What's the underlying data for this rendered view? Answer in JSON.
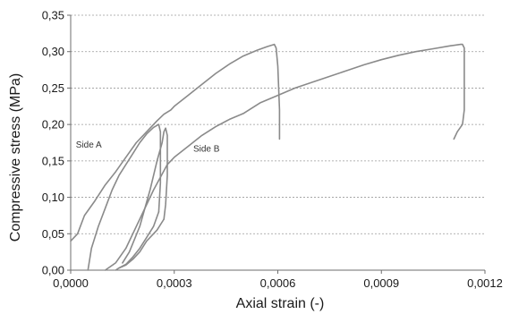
{
  "chart_data": {
    "type": "line",
    "title": "",
    "xlabel": "Axial strain (-)",
    "ylabel": "Compressive stress (MPa)",
    "xlim": [
      0,
      0.0012
    ],
    "ylim": [
      0,
      0.35
    ],
    "x_ticks": [
      0,
      0.0003,
      0.0006,
      0.0009,
      0.0012
    ],
    "x_tick_labels": [
      "0,0000",
      "0,0003",
      "0,0006",
      "0,0009",
      "0,0012"
    ],
    "y_ticks": [
      0,
      0.05,
      0.1,
      0.15,
      0.2,
      0.25,
      0.3,
      0.35
    ],
    "y_tick_labels": [
      "0,00",
      "0,05",
      "0,10",
      "0,15",
      "0,20",
      "0,25",
      "0,30",
      "0,35"
    ],
    "grid": "horizontal dashed",
    "line_color": "#8a8a8a",
    "annotations": [
      {
        "text": "Side A",
        "x": 1.5e-05,
        "y": 0.168
      },
      {
        "text": "Side B",
        "x": 0.000355,
        "y": 0.163
      }
    ],
    "series": [
      {
        "x": [
          0,
          2e-05,
          4e-05,
          7e-05,
          0.0001,
          0.00013,
          0.00016,
          0.00019,
          0.00022,
          0.00025,
          0.00027,
          0.00029,
          0.0003,
          0.00034,
          0.00038,
          0.00042,
          0.00046,
          0.0005,
          0.00054,
          0.00057,
          0.00059,
          0.000595,
          0.0006,
          0.000605,
          0.000605
        ],
        "y": [
          0.04,
          0.05,
          0.075,
          0.095,
          0.117,
          0.135,
          0.155,
          0.175,
          0.19,
          0.205,
          0.214,
          0.22,
          0.225,
          0.24,
          0.255,
          0.27,
          0.283,
          0.294,
          0.302,
          0.307,
          0.31,
          0.305,
          0.28,
          0.22,
          0.18
        ]
      },
      {
        "x": [
          5e-05,
          6e-05,
          8e-05,
          0.0001,
          0.00012,
          0.00014,
          0.00016,
          0.00018,
          0.0002,
          0.00022,
          0.00024,
          0.000255,
          0.00026,
          0.00026,
          0.000255
        ],
        "y": [
          0.0,
          0.03,
          0.06,
          0.085,
          0.11,
          0.13,
          0.145,
          0.16,
          0.175,
          0.187,
          0.196,
          0.2,
          0.19,
          0.12,
          0.08
        ]
      },
      {
        "x": [
          0.000255,
          0.00024,
          0.00022,
          0.0002,
          0.00018,
          0.00016,
          0.00014,
          0.00013
        ],
        "y": [
          0.08,
          0.06,
          0.045,
          0.03,
          0.018,
          0.008,
          0.003,
          0.0
        ]
      },
      {
        "x": [
          0.00015,
          0.00017,
          0.0002,
          0.00023,
          0.00025,
          0.000265,
          0.00027,
          0.000275,
          0.00028,
          0.00028,
          0.000275,
          0.00027
        ],
        "y": [
          0.01,
          0.025,
          0.06,
          0.11,
          0.15,
          0.175,
          0.19,
          0.195,
          0.185,
          0.13,
          0.09,
          0.07
        ]
      },
      {
        "x": [
          0.00027,
          0.00025,
          0.00022,
          0.0002,
          0.00018,
          0.00016,
          0.00014
        ],
        "y": [
          0.07,
          0.055,
          0.04,
          0.025,
          0.015,
          0.007,
          0.003
        ]
      },
      {
        "x": [
          0.0001,
          0.00013,
          0.00016,
          0.0002,
          0.00024,
          0.00028,
          0.0003,
          0.00034,
          0.00038,
          0.00042,
          0.00046,
          0.0005,
          0.00055,
          0.0006,
          0.00065,
          0.0007,
          0.00075,
          0.0008,
          0.00085,
          0.0009,
          0.00095,
          0.001,
          0.00105,
          0.0011,
          0.00113,
          0.001135,
          0.00114,
          0.00114,
          0.001135,
          0.00112,
          0.00111
        ],
        "y": [
          0.0,
          0.01,
          0.03,
          0.07,
          0.11,
          0.145,
          0.155,
          0.17,
          0.185,
          0.197,
          0.207,
          0.215,
          0.23,
          0.24,
          0.25,
          0.258,
          0.266,
          0.274,
          0.282,
          0.289,
          0.295,
          0.3,
          0.304,
          0.308,
          0.31,
          0.31,
          0.305,
          0.22,
          0.2,
          0.19,
          0.18
        ]
      }
    ]
  }
}
